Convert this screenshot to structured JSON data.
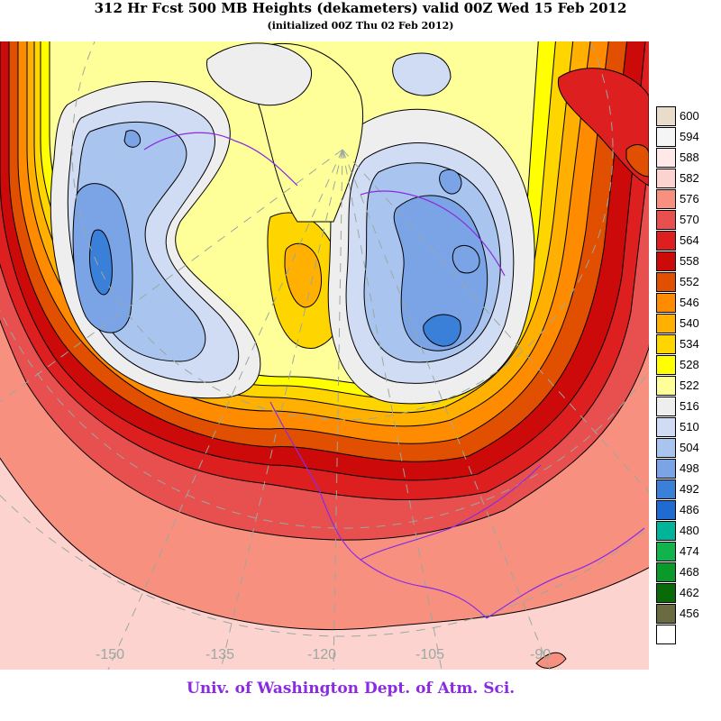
{
  "title": "312 Hr Fcst 500 MB Heights (dekameters) valid 00Z Wed 15 Feb 2012",
  "subtitle": "(initialized 00Z Thu 02 Feb 2012)",
  "credit": "Univ. of Washington Dept. of Atm. Sci.",
  "longitude_labels": [
    "-150",
    "-135",
    "-120",
    "-105",
    "-90"
  ],
  "legend": [
    {
      "value": "600",
      "color": "#eadccb"
    },
    {
      "value": "594",
      "color": "#f5f5f5"
    },
    {
      "value": "588",
      "color": "#ffe8e8"
    },
    {
      "value": "582",
      "color": "#fdd3d0"
    },
    {
      "value": "576",
      "color": "#f89080"
    },
    {
      "value": "570",
      "color": "#e85050"
    },
    {
      "value": "564",
      "color": "#dd1f1f"
    },
    {
      "value": "558",
      "color": "#cc0a0a"
    },
    {
      "value": "552",
      "color": "#e05000"
    },
    {
      "value": "546",
      "color": "#ff8c00"
    },
    {
      "value": "540",
      "color": "#ffb000"
    },
    {
      "value": "534",
      "color": "#ffd500"
    },
    {
      "value": "528",
      "color": "#ffff00"
    },
    {
      "value": "522",
      "color": "#ffff99"
    },
    {
      "value": "516",
      "color": "#eeeeee"
    },
    {
      "value": "510",
      "color": "#d0dcf4"
    },
    {
      "value": "504",
      "color": "#a9c4ee"
    },
    {
      "value": "498",
      "color": "#7aa4e6"
    },
    {
      "value": "492",
      "color": "#3a80d8"
    },
    {
      "value": "486",
      "color": "#1f6bd2"
    },
    {
      "value": "480",
      "color": "#00b49a"
    },
    {
      "value": "474",
      "color": "#12b24c"
    },
    {
      "value": "468",
      "color": "#0a9a2a"
    },
    {
      "value": "462",
      "color": "#0a6a0a"
    },
    {
      "value": "456",
      "color": "#6b6b42"
    },
    {
      "value": "",
      "color": "#ffffff"
    }
  ]
}
